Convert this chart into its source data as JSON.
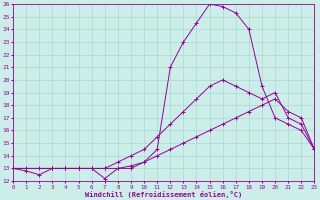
{
  "xlabel": "Windchill (Refroidissement éolien,°C)",
  "background_color": "#cceee8",
  "line_color": "#990099",
  "grid_color": "#aad8d0",
  "xlim": [
    0,
    23
  ],
  "ylim": [
    12,
    26
  ],
  "yticks": [
    12,
    13,
    14,
    15,
    16,
    17,
    18,
    19,
    20,
    21,
    22,
    23,
    24,
    25,
    26
  ],
  "xticks": [
    0,
    1,
    2,
    3,
    4,
    5,
    6,
    7,
    8,
    9,
    10,
    11,
    12,
    13,
    14,
    15,
    16,
    17,
    18,
    19,
    20,
    21,
    22,
    23
  ],
  "line1_x": [
    0,
    1,
    2,
    3,
    4,
    5,
    6,
    7,
    8,
    9,
    10,
    11,
    12,
    13,
    14,
    15,
    16,
    17,
    18,
    19,
    20,
    21,
    22,
    23
  ],
  "line1_y": [
    13,
    12.8,
    12.5,
    13,
    13,
    13,
    13,
    12.2,
    13,
    13,
    13.5,
    14.5,
    21,
    23,
    24.5,
    26,
    25.8,
    25.3,
    24,
    19.5,
    17,
    16.5,
    16,
    14.5
  ],
  "line2_x": [
    0,
    3,
    4,
    5,
    6,
    7,
    8,
    9,
    10,
    11,
    12,
    13,
    14,
    15,
    16,
    17,
    18,
    19,
    20,
    21,
    22,
    23
  ],
  "line2_y": [
    13,
    13,
    13,
    13,
    13,
    13,
    13.5,
    14,
    14.5,
    15.5,
    16.5,
    17.5,
    18.5,
    19.5,
    20,
    19.5,
    19,
    18.5,
    19,
    17,
    16.5,
    14.5
  ],
  "line3_x": [
    0,
    1,
    2,
    3,
    4,
    5,
    6,
    7,
    8,
    9,
    10,
    11,
    12,
    13,
    14,
    15,
    16,
    17,
    18,
    19,
    20,
    21,
    22,
    23
  ],
  "line3_y": [
    13,
    13,
    13,
    13,
    13,
    13,
    13,
    13,
    13,
    13.2,
    13.5,
    14,
    14.5,
    15,
    15.5,
    16,
    16.5,
    17,
    17.5,
    18,
    18.5,
    17.5,
    17,
    14.5
  ],
  "marker": "+"
}
